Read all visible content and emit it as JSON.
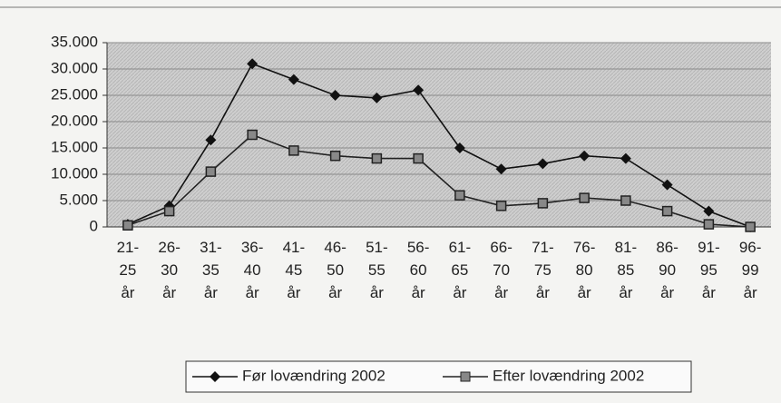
{
  "chart_data": {
    "type": "line",
    "categories": [
      "21- 25 år",
      "26- 30 år",
      "31- 35 år",
      "36- 40 år",
      "41- 45 år",
      "46- 50 år",
      "51- 55 år",
      "56- 60 år",
      "61- 65 år",
      "66- 70 år",
      "71- 75 år",
      "76- 80 år",
      "81- 85 år",
      "86- 90 år",
      "91- 95 år",
      "96- 99 år"
    ],
    "series": [
      {
        "name": "Før lovændring 2002",
        "color": "#111111",
        "marker": "diamond",
        "values": [
          500,
          4000,
          16500,
          31000,
          28000,
          25000,
          24500,
          26000,
          15000,
          11000,
          12000,
          13500,
          13000,
          8000,
          3000,
          0
        ]
      },
      {
        "name": "Efter lovændring 2002",
        "color": "#222222",
        "marker": "square",
        "values": [
          300,
          3000,
          10500,
          17500,
          14500,
          13500,
          13000,
          13000,
          6000,
          4000,
          4500,
          5500,
          5000,
          3000,
          500,
          0
        ]
      }
    ],
    "ylim": [
      0,
      35000
    ],
    "yticks": [
      0,
      {
        "value": 5000,
        "label": "5.000"
      },
      {
        "value": 10000,
        "label": "10.000"
      },
      {
        "value": 15000,
        "label": "15.000"
      },
      {
        "value": 20000,
        "label": "20.000"
      },
      {
        "value": 25000,
        "label": "25.000"
      },
      {
        "value": 30000,
        "label": "30.000"
      },
      {
        "value": 35000,
        "label": "35.000"
      }
    ],
    "grid": true,
    "legend": "bottom"
  }
}
